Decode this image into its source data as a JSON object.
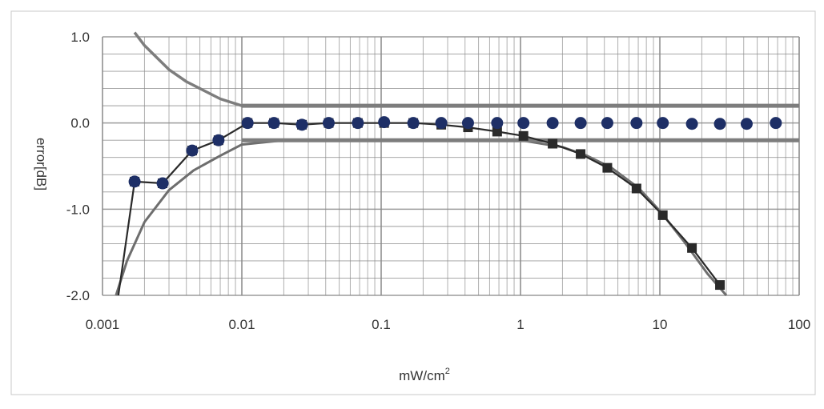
{
  "chart_data": {
    "type": "line",
    "title": "",
    "xlabel": "mW/cm",
    "xlabel_sup": "2",
    "ylabel": "error[dB]",
    "x_scale": "log",
    "xlim": [
      0.001,
      100
    ],
    "ylim": [
      -2.0,
      1.0
    ],
    "x_ticks": [
      0.001,
      0.01,
      0.1,
      1,
      10,
      100
    ],
    "x_tick_labels": [
      "0.001",
      "0.01",
      "0.1",
      "1",
      "10",
      "100"
    ],
    "y_ticks": [
      1.0,
      0.0,
      -1.0,
      -2.0
    ],
    "y_tick_labels": [
      "1.0",
      "0.0",
      "-1.0",
      "-2.0"
    ],
    "grid": true,
    "legend": "none",
    "colors": {
      "dots_series": "#1e2f66",
      "square_series": "#2a2a2a",
      "limit_line": "#7d7d7d",
      "curve": "#6e6e6e",
      "grid": "#8a8a8a"
    },
    "series": [
      {
        "style": "markers-circle",
        "x": [
          0.0017,
          0.0027,
          0.0044,
          0.0068,
          0.011,
          0.017,
          0.027,
          0.042,
          0.068,
          0.105,
          0.17,
          0.27,
          0.42,
          0.68,
          1.05,
          1.7,
          2.7,
          4.2,
          6.8,
          10.5,
          17,
          27,
          42,
          68
        ],
        "y": [
          -0.68,
          -0.7,
          -0.32,
          -0.2,
          0.0,
          0.0,
          -0.02,
          0.0,
          0.0,
          0.01,
          0.0,
          0.0,
          0.0,
          0.0,
          0.0,
          0.0,
          0.0,
          0.0,
          0.0,
          0.0,
          -0.01,
          -0.01,
          -0.01,
          0.0
        ]
      },
      {
        "style": "line-markers-square",
        "x": [
          0.0013,
          0.0017,
          0.0027,
          0.0044,
          0.0068,
          0.011,
          0.017,
          0.027,
          0.042,
          0.068,
          0.105,
          0.17,
          0.27,
          0.42,
          0.68,
          1.05,
          1.7,
          2.7,
          4.2,
          6.8,
          10.5,
          17,
          27
        ],
        "y": [
          -2.0,
          -0.68,
          -0.7,
          -0.32,
          -0.2,
          0.0,
          0.0,
          -0.02,
          0.0,
          0.0,
          0.0,
          0.0,
          -0.02,
          -0.05,
          -0.1,
          -0.15,
          -0.24,
          -0.36,
          -0.52,
          -0.76,
          -1.07,
          -1.45,
          -1.88
        ]
      },
      {
        "style": "line",
        "x": [
          0.00125,
          0.0015,
          0.002,
          0.003,
          0.0045,
          0.007,
          0.01,
          0.02,
          1,
          2,
          3,
          4.5,
          7,
          10,
          15,
          22,
          30
        ],
        "y": [
          -2.0,
          -1.6,
          -1.15,
          -0.78,
          -0.55,
          -0.38,
          -0.25,
          -0.2,
          -0.2,
          -0.28,
          -0.38,
          -0.52,
          -0.75,
          -1.02,
          -1.38,
          -1.75,
          -2.0
        ]
      },
      {
        "style": "line",
        "x": [
          0.0017,
          0.002,
          0.003,
          0.004,
          0.005,
          0.007,
          0.01,
          0.1,
          100
        ],
        "y": [
          1.05,
          0.9,
          0.62,
          0.48,
          0.4,
          0.28,
          0.2,
          0.2,
          0.2
        ]
      },
      {
        "style": "line",
        "x": [
          0.01,
          100
        ],
        "y": [
          -0.2,
          -0.2
        ]
      }
    ]
  }
}
